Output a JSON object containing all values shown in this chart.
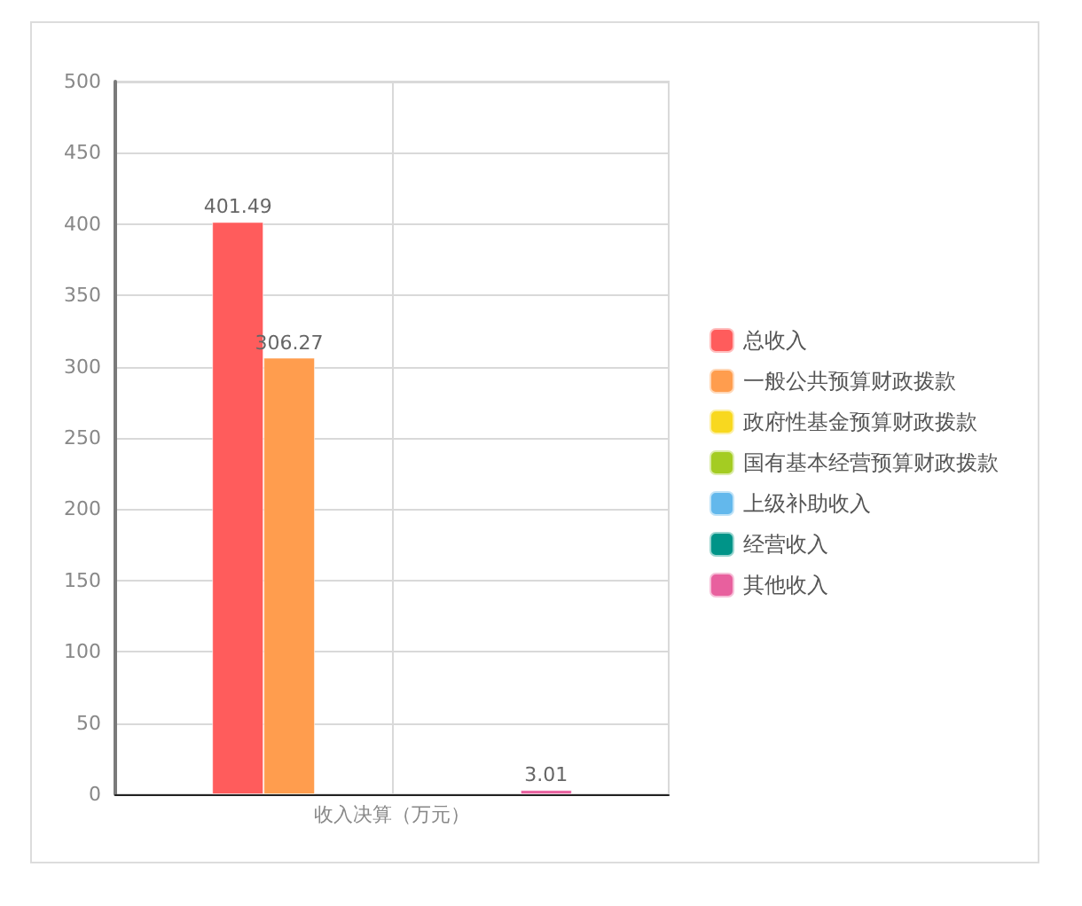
{
  "chart_data": {
    "type": "bar",
    "categories": [
      "收入决算（万元）"
    ],
    "series": [
      {
        "name": "总收入",
        "color": "#ff5c5c",
        "values": [
          401.49
        ]
      },
      {
        "name": "一般公共预算财政拨款",
        "color": "#ff9d4e",
        "values": [
          306.27
        ]
      },
      {
        "name": "政府性基金预算财政拨款",
        "color": "#f8d81f",
        "values": [
          null
        ]
      },
      {
        "name": "国有基本经营预算财政拨款",
        "color": "#a4cc22",
        "values": [
          null
        ]
      },
      {
        "name": "上级补助收入",
        "color": "#63b8ec",
        "values": [
          null
        ]
      },
      {
        "name": "经营收入",
        "color": "#009488",
        "values": [
          null
        ]
      },
      {
        "name": "其他收入",
        "color": "#e8609e",
        "values": [
          3.01
        ]
      }
    ],
    "ylim": [
      0,
      500
    ],
    "yticks": [
      0,
      50,
      100,
      150,
      200,
      250,
      300,
      350,
      400,
      450,
      500
    ],
    "grid": true,
    "legend": "right",
    "data_labels": true
  }
}
